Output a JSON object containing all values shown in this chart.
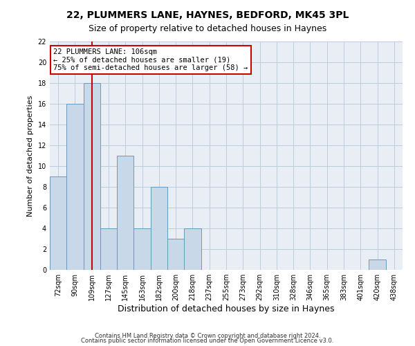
{
  "title": "22, PLUMMERS LANE, HAYNES, BEDFORD, MK45 3PL",
  "subtitle": "Size of property relative to detached houses in Haynes",
  "xlabel": "Distribution of detached houses by size in Haynes",
  "ylabel": "Number of detached properties",
  "footnote1": "Contains HM Land Registry data © Crown copyright and database right 2024.",
  "footnote2": "Contains public sector information licensed under the Open Government Licence v3.0.",
  "categories": [
    "72sqm",
    "90sqm",
    "109sqm",
    "127sqm",
    "145sqm",
    "163sqm",
    "182sqm",
    "200sqm",
    "218sqm",
    "237sqm",
    "255sqm",
    "273sqm",
    "292sqm",
    "310sqm",
    "328sqm",
    "346sqm",
    "365sqm",
    "383sqm",
    "401sqm",
    "420sqm",
    "438sqm"
  ],
  "values": [
    9,
    16,
    18,
    4,
    11,
    4,
    8,
    3,
    4,
    0,
    0,
    0,
    0,
    0,
    0,
    0,
    0,
    0,
    0,
    1,
    0
  ],
  "bar_color": "#c8d8e8",
  "bar_edge_color": "#6699bb",
  "highlight_index": 2,
  "highlight_line_color": "#cc0000",
  "annotation_line1": "22 PLUMMERS LANE: 106sqm",
  "annotation_line2": "← 25% of detached houses are smaller (19)",
  "annotation_line3": "75% of semi-detached houses are larger (58) →",
  "annotation_box_color": "#ffffff",
  "annotation_box_edge_color": "#cc0000",
  "ylim": [
    0,
    22
  ],
  "yticks": [
    0,
    2,
    4,
    6,
    8,
    10,
    12,
    14,
    16,
    18,
    20,
    22
  ],
  "grid_color": "#bbccdd",
  "bg_color": "#e8eef4",
  "title_fontsize": 10,
  "subtitle_fontsize": 9,
  "tick_fontsize": 7,
  "ylabel_fontsize": 8,
  "xlabel_fontsize": 9,
  "annotation_fontsize": 7.5
}
